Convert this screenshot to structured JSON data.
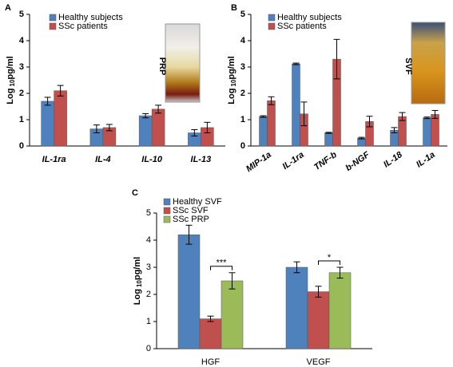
{
  "chart_data": [
    {
      "type": "bar",
      "panel": "A",
      "ylabel": {
        "prefix": "Log",
        "sub": "10",
        "suffix": "pg/ml"
      },
      "categories": [
        "IL-1ra",
        "IL-4",
        "IL-10",
        "IL-13"
      ],
      "series": [
        {
          "name": "Healthy subjects",
          "color": "#4f81bd",
          "values": [
            1.7,
            0.65,
            1.15,
            0.5
          ],
          "errors": [
            0.15,
            0.15,
            0.08,
            0.12
          ]
        },
        {
          "name": "SSc patients",
          "color": "#c0504d",
          "values": [
            2.1,
            0.7,
            1.4,
            0.7
          ],
          "errors": [
            0.2,
            0.12,
            0.15,
            0.2
          ]
        }
      ],
      "ylim": [
        0,
        5
      ],
      "yticks": [
        0,
        1,
        2,
        3,
        4,
        5
      ],
      "photo_label": "PRP"
    },
    {
      "type": "bar",
      "panel": "B",
      "ylabel": {
        "prefix": "Log",
        "sub": "10",
        "suffix": "pg/ml"
      },
      "categories": [
        "MIP-1a",
        "IL-1ra",
        "TNF-b",
        "b-NGF",
        "IL-18",
        "IL-1a"
      ],
      "series": [
        {
          "name": "Healthy subjects",
          "color": "#4f81bd",
          "values": [
            1.12,
            3.12,
            0.5,
            0.3,
            0.6,
            1.07
          ],
          "errors": [
            0.03,
            0.03,
            0.02,
            0.03,
            0.1,
            0.03
          ]
        },
        {
          "name": "SSc patients",
          "color": "#c0504d",
          "values": [
            1.72,
            1.22,
            3.3,
            0.93,
            1.12,
            1.2
          ],
          "errors": [
            0.15,
            0.45,
            0.75,
            0.2,
            0.15,
            0.15
          ]
        }
      ],
      "ylim": [
        0,
        5
      ],
      "yticks": [
        0,
        1,
        2,
        3,
        4,
        5
      ],
      "photo_label": "SVF"
    },
    {
      "type": "bar",
      "panel": "C",
      "ylabel": {
        "prefix": "Log",
        "sub": "10",
        "suffix": "pg/ml"
      },
      "categories": [
        "HGF",
        "VEGF"
      ],
      "series": [
        {
          "name": "Healthy SVF",
          "color": "#4f81bd",
          "values": [
            4.2,
            3.0
          ],
          "errors": [
            0.35,
            0.2
          ]
        },
        {
          "name": "SSc SVF",
          "color": "#c0504d",
          "values": [
            1.1,
            2.1
          ],
          "errors": [
            0.1,
            0.2
          ]
        },
        {
          "name": "SSc PRP",
          "color": "#9bbb59",
          "values": [
            2.5,
            2.8
          ],
          "errors": [
            0.3,
            0.2
          ]
        }
      ],
      "ylim": [
        0,
        5
      ],
      "yticks": [
        0,
        1,
        2,
        3,
        4,
        5
      ],
      "annotations": [
        "***",
        "*"
      ]
    }
  ]
}
